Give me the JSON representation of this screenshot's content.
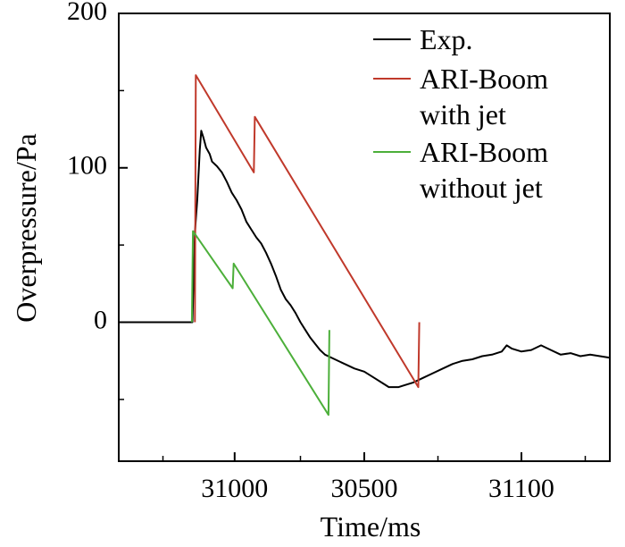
{
  "chart_data": {
    "type": "line",
    "title": "",
    "xlabel": "Time/ms",
    "ylabel": "Overpressure/Pa",
    "ylim": [
      -90,
      200
    ],
    "y_ticks": [
      0,
      100,
      200
    ],
    "x_tick_labels": [
      "31000",
      "30500",
      "31100"
    ],
    "grid": false,
    "legend_position": "top-right",
    "series": [
      {
        "name": "Exp.",
        "color": "#000000",
        "points": [
          [
            0.0,
            0
          ],
          [
            0.15,
            0
          ],
          [
            0.155,
            58
          ],
          [
            0.16,
            80
          ],
          [
            0.165,
            112
          ],
          [
            0.168,
            124
          ],
          [
            0.172,
            120
          ],
          [
            0.178,
            113
          ],
          [
            0.185,
            109
          ],
          [
            0.19,
            104
          ],
          [
            0.2,
            101
          ],
          [
            0.21,
            97
          ],
          [
            0.22,
            91
          ],
          [
            0.23,
            84
          ],
          [
            0.24,
            79
          ],
          [
            0.25,
            73
          ],
          [
            0.26,
            65
          ],
          [
            0.27,
            60
          ],
          [
            0.28,
            55
          ],
          [
            0.29,
            51
          ],
          [
            0.3,
            45
          ],
          [
            0.31,
            38
          ],
          [
            0.32,
            30
          ],
          [
            0.33,
            21
          ],
          [
            0.34,
            15
          ],
          [
            0.35,
            11
          ],
          [
            0.36,
            6
          ],
          [
            0.37,
            0
          ],
          [
            0.38,
            -5
          ],
          [
            0.39,
            -10
          ],
          [
            0.4,
            -14
          ],
          [
            0.41,
            -18
          ],
          [
            0.42,
            -21
          ],
          [
            0.44,
            -24
          ],
          [
            0.46,
            -27
          ],
          [
            0.48,
            -30
          ],
          [
            0.5,
            -32
          ],
          [
            0.52,
            -36
          ],
          [
            0.54,
            -40
          ],
          [
            0.55,
            -42
          ],
          [
            0.57,
            -42
          ],
          [
            0.58,
            -41
          ],
          [
            0.6,
            -39
          ],
          [
            0.62,
            -36
          ],
          [
            0.64,
            -33
          ],
          [
            0.66,
            -30
          ],
          [
            0.68,
            -27
          ],
          [
            0.7,
            -25
          ],
          [
            0.72,
            -24
          ],
          [
            0.74,
            -22
          ],
          [
            0.76,
            -21
          ],
          [
            0.78,
            -19
          ],
          [
            0.79,
            -15
          ],
          [
            0.8,
            -17
          ],
          [
            0.82,
            -19
          ],
          [
            0.84,
            -18
          ],
          [
            0.86,
            -15
          ],
          [
            0.88,
            -18
          ],
          [
            0.9,
            -21
          ],
          [
            0.92,
            -20
          ],
          [
            0.94,
            -22
          ],
          [
            0.96,
            -21
          ],
          [
            0.98,
            -22
          ],
          [
            1.0,
            -23
          ]
        ]
      },
      {
        "name": "ARI-Boom with jet",
        "color": "#c0392b",
        "points": [
          [
            0.155,
            0
          ],
          [
            0.157,
            160
          ],
          [
            0.275,
            97
          ],
          [
            0.277,
            133
          ],
          [
            0.61,
            -42
          ],
          [
            0.612,
            0
          ]
        ]
      },
      {
        "name": "ARI-Boom without jet",
        "color": "#4caf3a",
        "points": [
          [
            0.149,
            0
          ],
          [
            0.151,
            59
          ],
          [
            0.232,
            22
          ],
          [
            0.234,
            38
          ],
          [
            0.427,
            -60
          ],
          [
            0.429,
            -5
          ]
        ]
      }
    ]
  }
}
